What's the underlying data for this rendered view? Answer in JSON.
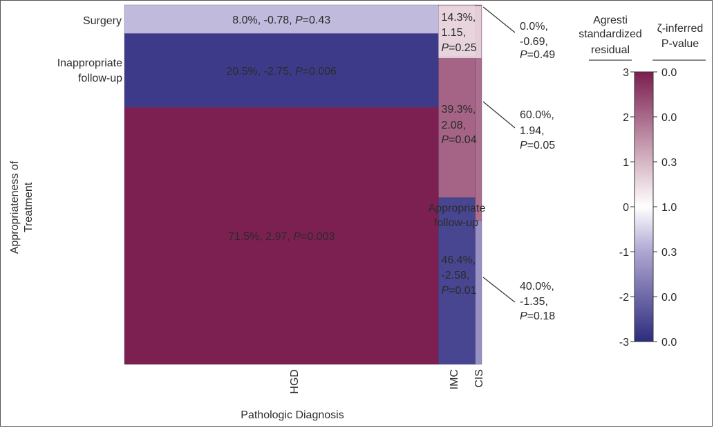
{
  "chart_data": {
    "type": "mosaic",
    "xlabel": "Pathologic Diagnosis",
    "ylabel_lines": [
      "Appropriateness of",
      "Treatment"
    ],
    "columns": [
      {
        "name": "HGD",
        "weight": 0.879
      },
      {
        "name": "IMC",
        "weight": 0.103
      },
      {
        "name": "CIS",
        "weight": 0.018
      }
    ],
    "rows_top_to_bottom": [
      "Surgery",
      "Inappropriate follow-up",
      "Appropriate follow-up"
    ],
    "row_labels": {
      "surgery": "Surgery",
      "inappropriate_1": "Inappropriate",
      "inappropriate_2": "follow-up",
      "appropriate_1": "Appropriate",
      "appropriate_2": "follow-up"
    },
    "cells": [
      {
        "column": "HGD",
        "row": "Surgery",
        "percent": 8.0,
        "residual": -0.78,
        "p": "0.43",
        "percent_text": "8.0%,",
        "residual_text": "-0.78,",
        "p_text": "=0.43"
      },
      {
        "column": "HGD",
        "row": "Inappropriate follow-up",
        "percent": 20.5,
        "residual": -2.75,
        "p": "0.006",
        "percent_text": "20.5%,",
        "residual_text": "-2.75,",
        "p_text": "=0.006"
      },
      {
        "column": "HGD",
        "row": "Appropriate follow-up",
        "percent": 71.5,
        "residual": 2.97,
        "p": "0.003",
        "percent_text": "71.5%,",
        "residual_text": "2.97,",
        "p_text": "=0.003"
      },
      {
        "column": "IMC",
        "row": "Surgery",
        "percent": 14.3,
        "residual": 1.15,
        "p": "0.25",
        "percent_text": "14.3%,",
        "residual_text": "1.15,",
        "p_text": "=0.25"
      },
      {
        "column": "IMC",
        "row": "Inappropriate follow-up",
        "percent": 39.3,
        "residual": 2.08,
        "p": "0.04",
        "percent_text": "39.3%,",
        "residual_text": "2.08,",
        "p_text": "=0.04"
      },
      {
        "column": "IMC",
        "row": "Appropriate follow-up",
        "percent": 46.4,
        "residual": -2.58,
        "p": "0.01",
        "percent_text": "46.4%,",
        "residual_text": "-2.58,",
        "p_text": "=0.01"
      },
      {
        "column": "CIS",
        "row": "Surgery",
        "percent": 0.0,
        "residual": -0.69,
        "p": "0.49",
        "percent_text": "0.0%,",
        "residual_text": "-0.69,",
        "p_text": "=0.49"
      },
      {
        "column": "CIS",
        "row": "Inappropriate follow-up",
        "percent": 60.0,
        "residual": 1.94,
        "p": "0.05",
        "percent_text": "60.0%,",
        "residual_text": "1.94,",
        "p_text": "=0.05"
      },
      {
        "column": "CIS",
        "row": "Appropriate follow-up",
        "percent": 40.0,
        "residual": -1.35,
        "p": "0.18",
        "percent_text": "40.0%,",
        "residual_text": "-1.35,",
        "p_text": "=0.18"
      }
    ],
    "p_letter": "P",
    "colorbar": {
      "title_left_1": "Agresti",
      "title_left_2": "standardized",
      "title_left_3": "residual",
      "title_right_1": "ζ-inferred",
      "title_right_2": "P-value",
      "range": [
        -3,
        3
      ],
      "ticks": [
        {
          "residual": "3",
          "pvalue": "0.0"
        },
        {
          "residual": "2",
          "pvalue": "0.0"
        },
        {
          "residual": "1",
          "pvalue": "0.3"
        },
        {
          "residual": "0",
          "pvalue": "1.0"
        },
        {
          "residual": "-1",
          "pvalue": "0.3"
        },
        {
          "residual": "-2",
          "pvalue": "0.0"
        },
        {
          "residual": "-3",
          "pvalue": "0.0"
        }
      ],
      "colors": {
        "neg3": "#2d2c7e",
        "neg1": "#aea6d2",
        "zero": "#ffffff",
        "pos1": "#d6b6c4",
        "pos3": "#7b1d4f"
      }
    }
  }
}
